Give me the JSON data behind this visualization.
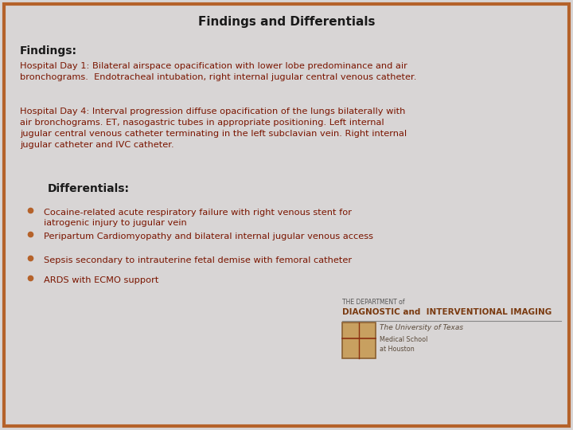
{
  "title": "Findings and Differentials",
  "title_color": "#1a1a1a",
  "title_fontsize": 11,
  "background_color": "#d8d5d5",
  "border_color": "#b5622a",
  "findings_label": "Findings:",
  "findings_label_color": "#1a1a1a",
  "findings_label_fontsize": 10,
  "findings_text_color": "#7a1500",
  "findings_text_fontsize": 8.2,
  "paragraph1": "Hospital Day 1: Bilateral airspace opacification with lower lobe predominance and air\nbronchograms.  Endotracheal intubation, right internal jugular central venous catheter.",
  "paragraph2": "Hospital Day 4: Interval progression diffuse opacification of the lungs bilaterally with\nair bronchograms. ET, nasogastric tubes in appropriate positioning. Left internal\njugular central venous catheter terminating in the left subclavian vein. Right internal\njugular catheter and IVC catheter.",
  "differentials_label": "Differentials:",
  "differentials_label_color": "#1a1a1a",
  "differentials_label_fontsize": 10,
  "bullet_color": "#b5622a",
  "bullet_text_color": "#7a1500",
  "bullet_fontsize": 8.2,
  "bullets": [
    "Cocaine-related acute respiratory failure with right venous stent for\niatrogenic injury to jugular vein",
    "Peripartum Cardiomyopathy and bilateral internal jugular venous access",
    "Sepsis secondary to intrauterine fetal demise with femoral catheter",
    "ARDS with ECMO support"
  ],
  "logo_text1": "THE DEPARTMENT of",
  "logo_text2": "DIAGNOSTIC and  INTERVENTIONAL IMAGING",
  "logo_text3": "The University of Texas",
  "logo_text4": "Medical School",
  "logo_text5": "at Houston"
}
